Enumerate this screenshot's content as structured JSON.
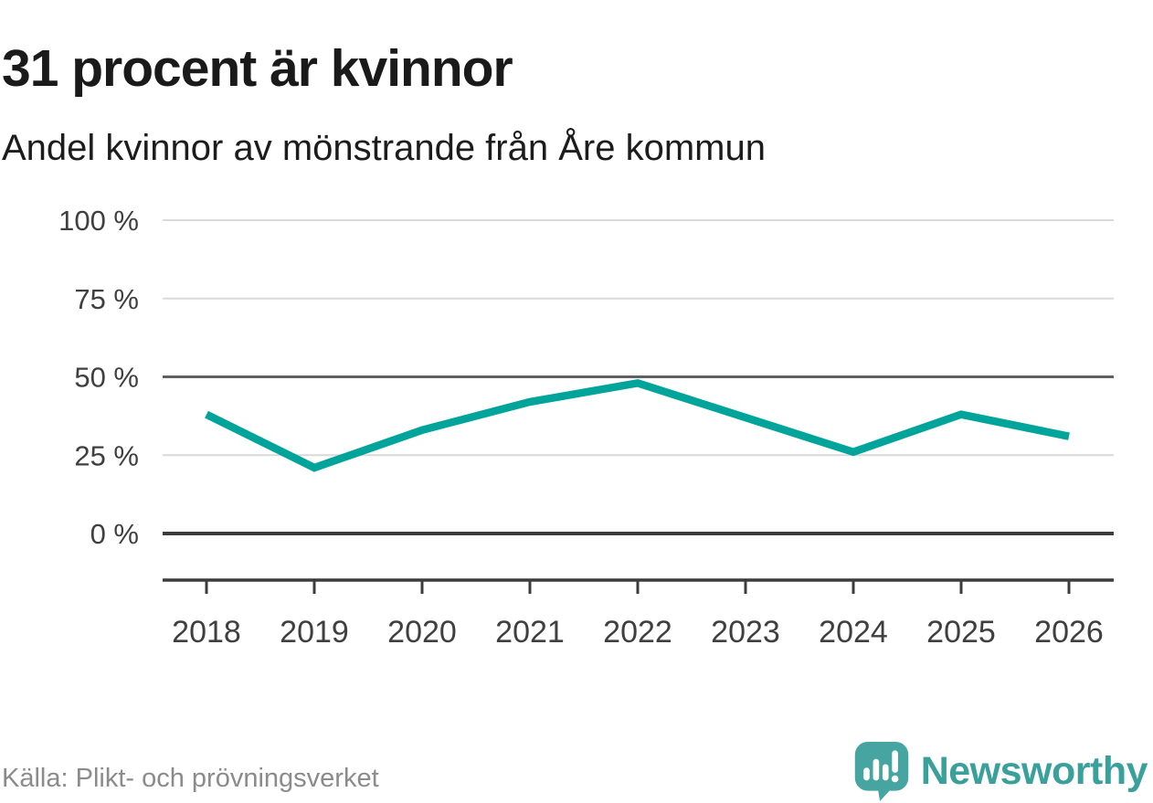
{
  "header": {
    "title": "31 procent är kvinnor",
    "subtitle": "Andel kvinnor av mönstrande från Åre kommun"
  },
  "chart_data": {
    "type": "line",
    "title": "31 procent är kvinnor",
    "subtitle": "Andel kvinnor av mönstrande från Åre kommun",
    "categories": [
      "2018",
      "2019",
      "2020",
      "2021",
      "2022",
      "2023",
      "2024",
      "2025",
      "2026"
    ],
    "series": [
      {
        "name": "Andel kvinnor av mönstrande från Åre kommun",
        "values": [
          38,
          21,
          33,
          42,
          48,
          37,
          26,
          38,
          31
        ]
      }
    ],
    "unit": "%",
    "xlabel": "",
    "ylabel": "",
    "ylim": [
      0,
      100
    ],
    "yticks": [
      0,
      25,
      50,
      75,
      100
    ],
    "ytick_format": "{v} %",
    "grid": "horizontal",
    "emphasized_gridlines": [
      50
    ],
    "legend_position": "none",
    "line_color": "#00a49a"
  },
  "colors": {
    "accent_teal": "#00a49a",
    "brand_teal": "#3aa09c",
    "gridline_light": "#d9d9d9",
    "gridline_mid": "#606060",
    "axis_dark": "#3c3c3c",
    "text_dark": "#1a1a1a",
    "text_axis": "#3f3f3f",
    "text_muted": "#8b8b8b"
  },
  "footer": {
    "source": "Källa: Plikt- och prövningsverket",
    "brand": "Newsworthy"
  }
}
